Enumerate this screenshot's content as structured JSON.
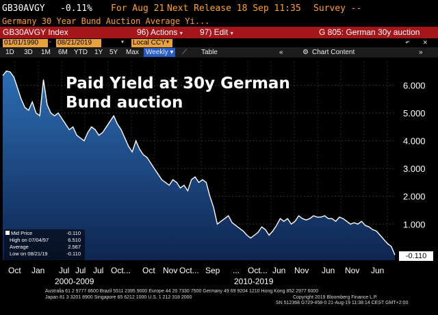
{
  "header": {
    "ticker": "GB30AVGY",
    "change": "-0.11%",
    "for_label": "For Aug 21",
    "next_release": "Next Release 18 Sep 11:35",
    "survey": "Survey --",
    "subtitle": "Germany 30 Year Bund Auction Average Yi..."
  },
  "toolbar": {
    "index_name": "GB30AVGY Index",
    "actions": "96) Actions",
    "edit": "97) Edit",
    "page_title": "G 805: German 30y auction"
  },
  "dates": {
    "start": "01/01/1990",
    "end": "08/21/2019",
    "currency": "Local CCY"
  },
  "tabs": {
    "periods": [
      "1D",
      "3D",
      "1M",
      "6M",
      "YTD",
      "1Y",
      "5Y",
      "Max"
    ],
    "frequency": "Weekly",
    "table": "Table",
    "chart_content": "Chart Content"
  },
  "annotation": {
    "line1": "Paid Yield at 30y German",
    "line2": "Bund auction"
  },
  "legend": {
    "title": "Mid Price",
    "title_value": "-0.110",
    "high": "High on 07/04/97",
    "high_value": "6.510",
    "average": "Average",
    "average_value": "2.567",
    "low": "Low on 08/21/19",
    "low_value": "-0.110"
  },
  "last_value": "-0.110",
  "footer": {
    "line1": "Australia 61 2 9777 8600 Brazil 5511 2395 9000 Europe 44 20 7330 7500 Germany 49 69 9204 1210 Hong Kong 852 2977 6000",
    "line2": "Japan 81 3 3201 8900          Singapore 65 6212 1000          U.S. 1 212 318 2000",
    "line3": "Copyright 2019 Bloomberg Finance L.P.",
    "line4": "SN 512368 G729-458-0 21-Aug-19 11:38:14 CEST GMT+2:00"
  },
  "colors": {
    "red_bar": "#a5161b",
    "area_top": "#2d6db4",
    "area_bottom": "#0e2550",
    "line": "#ffffff",
    "amber": "#e9a23b"
  },
  "chart_data": {
    "type": "area",
    "y_ticks": [
      "6.000",
      "5.000",
      "4.000",
      "3.000",
      "2.000",
      "1.000"
    ],
    "ylim": [
      -0.3,
      6.85
    ],
    "x_tick_labels": [
      "Oct",
      "Jan",
      "Jul",
      "Jul",
      "Jul",
      "Oct...",
      "Oct",
      "Nov",
      "Oct...",
      "Sep",
      "...",
      "Oct...",
      "Jun",
      "Nov",
      "Jun",
      "Nov",
      "Jun"
    ],
    "x_group_labels": [
      "2000-2009",
      "2010-2019"
    ],
    "series": [
      {
        "values": [
          6.35,
          6.51,
          6.48,
          6.3,
          5.9,
          5.5,
          5.2,
          5.1,
          5.4,
          5.0,
          4.9,
          6.2,
          5.3,
          5.0,
          4.9,
          5.0,
          4.8,
          4.6,
          4.4,
          4.5,
          4.2,
          4.1,
          4.0,
          4.3,
          4.5,
          4.4,
          4.2,
          4.3,
          4.5,
          4.7,
          4.9,
          4.6,
          4.4,
          4.1,
          3.8,
          3.6,
          4.0,
          3.7,
          3.5,
          3.4,
          3.2,
          3.0,
          2.8,
          2.6,
          2.5,
          2.4,
          2.6,
          2.5,
          2.3,
          2.4,
          2.2,
          2.6,
          2.7,
          2.5,
          2.6,
          2.5,
          2.0,
          1.6,
          1.0,
          1.1,
          1.2,
          1.3,
          1.05,
          0.95,
          0.85,
          0.75,
          0.6,
          0.5,
          0.6,
          0.7,
          0.9,
          0.8,
          0.6,
          0.75,
          0.95,
          1.2,
          1.1,
          1.2,
          1.0,
          1.1,
          1.3,
          1.2,
          1.15,
          1.2,
          1.3,
          1.25,
          1.25,
          1.3,
          1.2,
          1.2,
          1.1,
          1.25,
          1.2,
          1.1,
          1.0,
          1.05,
          1.0,
          1.1,
          0.95,
          0.9,
          0.8,
          0.75,
          0.6,
          0.45,
          0.3,
          0.2,
          -0.11
        ]
      }
    ]
  }
}
